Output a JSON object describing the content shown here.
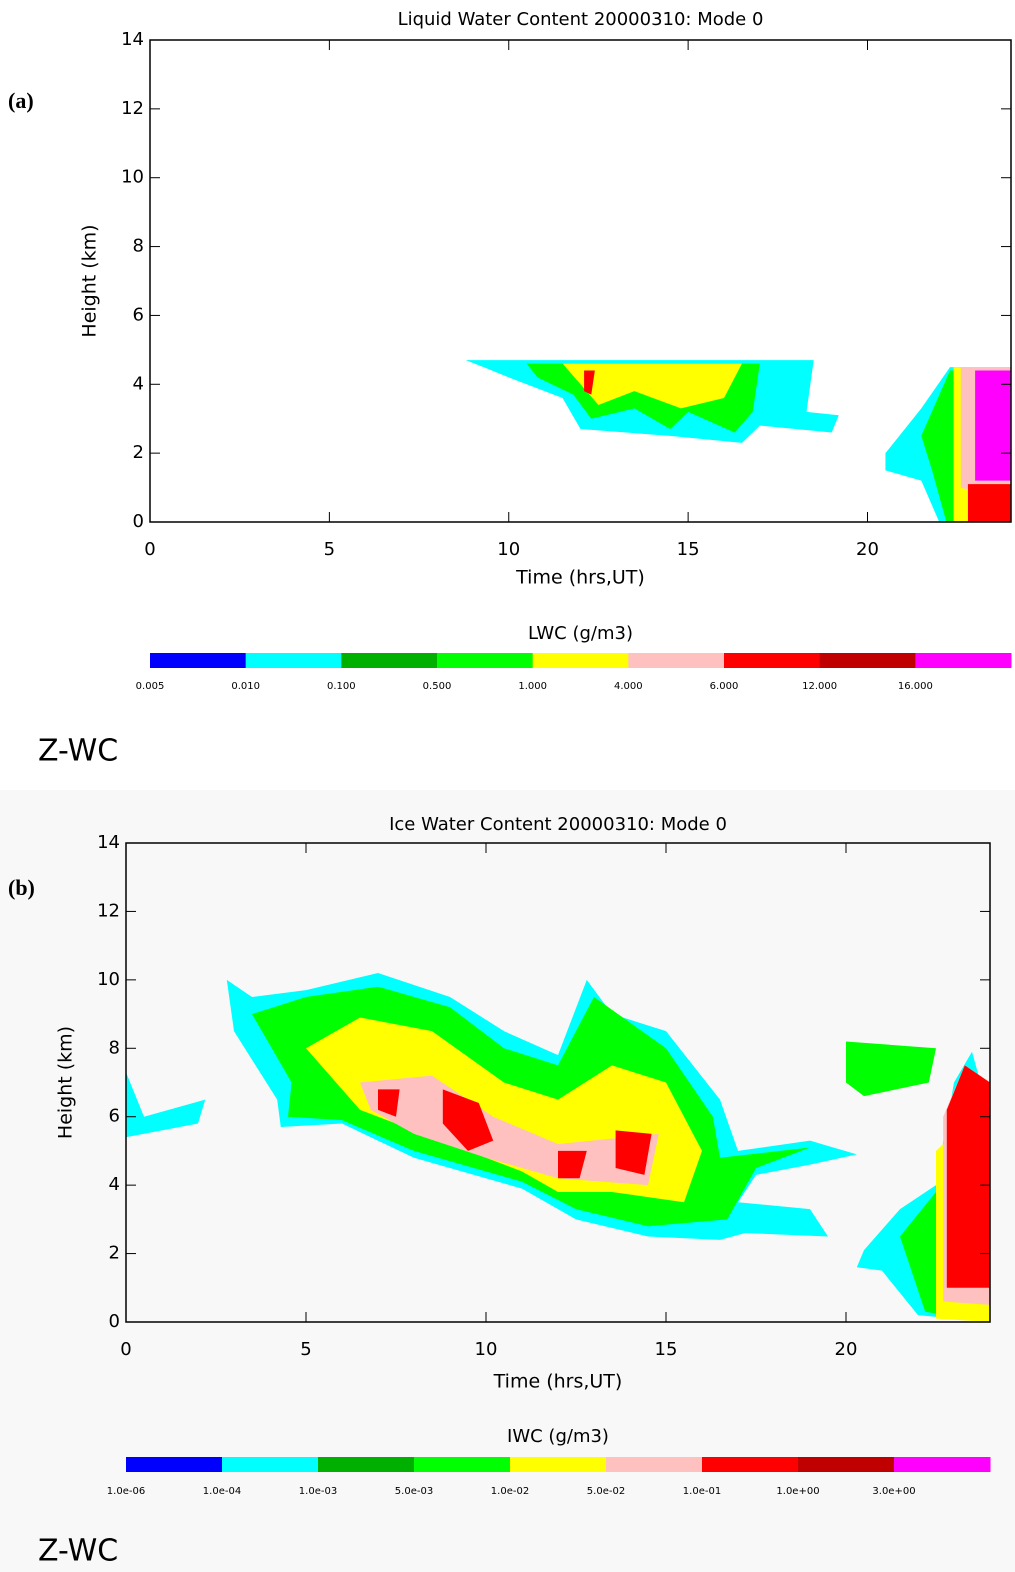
{
  "chart_data": [
    {
      "type": "heatmap",
      "panel_label": "(a)",
      "title": "Liquid Water Content 20000310: Mode 0",
      "xlabel": "Time (hrs,UT)",
      "ylabel": "Height (km)",
      "footer": "Z-WC",
      "xlim": [
        0,
        24
      ],
      "ylim": [
        0,
        14
      ],
      "xticks": [
        0,
        5,
        10,
        15,
        20
      ],
      "yticks": [
        0,
        2,
        4,
        6,
        8,
        10,
        12,
        14
      ],
      "colorbar": {
        "label": "LWC (g/m3)",
        "colors": [
          "#0000ff",
          "#00ffff",
          "#00b000",
          "#00ff00",
          "#ffff00",
          "#ffc0c0",
          "#ff0000",
          "#c00000",
          "#ff00ff"
        ],
        "ticks": [
          0.005,
          {
            "value": 0.01,
            "label": "0.010"
          },
          {
            "value": 0.1,
            "label": "0.100"
          },
          {
            "value": 0.5,
            "label": "0.500"
          },
          {
            "value": 1,
            "label": "1.000"
          },
          {
            "value": 4,
            "label": "4.000"
          },
          {
            "value": 6,
            "label": "6.000"
          },
          {
            "value": 12,
            "label": "12.000"
          },
          {
            "value": 16,
            "label": "16.000"
          }
        ]
      },
      "contours": [
        {
          "level": 1,
          "points": [
            [
              8.8,
              4.7
            ],
            [
              18.5,
              4.7
            ],
            [
              18.3,
              3.2
            ],
            [
              19.2,
              3.1
            ],
            [
              19,
              2.6
            ],
            [
              17,
              2.8
            ],
            [
              16.5,
              2.3
            ],
            [
              14.5,
              2.5
            ],
            [
              12,
              2.7
            ],
            [
              11.5,
              3.6
            ],
            [
              10,
              4.2
            ],
            [
              9.3,
              4.5
            ]
          ]
        },
        {
          "level": 3,
          "points": [
            [
              10.5,
              4.6
            ],
            [
              17,
              4.6
            ],
            [
              16.8,
              3.2
            ],
            [
              16.3,
              2.6
            ],
            [
              15,
              3.2
            ],
            [
              14.5,
              2.7
            ],
            [
              13.5,
              3.3
            ],
            [
              12.3,
              3.0
            ],
            [
              11.8,
              3.7
            ],
            [
              10.8,
              4.2
            ]
          ]
        },
        {
          "level": 4,
          "points": [
            [
              11.5,
              4.6
            ],
            [
              16.5,
              4.6
            ],
            [
              16,
              3.6
            ],
            [
              14.8,
              3.3
            ],
            [
              13.5,
              3.8
            ],
            [
              12.5,
              3.4
            ],
            [
              12,
              4.0
            ]
          ]
        },
        {
          "level": 6,
          "points": [
            [
              12.1,
              4.4
            ],
            [
              12.4,
              4.4
            ],
            [
              12.3,
              3.7
            ],
            [
              12.1,
              3.8
            ]
          ]
        },
        {
          "level": 1,
          "points": [
            [
              20.5,
              2.0
            ],
            [
              21.5,
              3.3
            ],
            [
              22.3,
              4.5
            ],
            [
              24,
              4.5
            ],
            [
              24,
              0
            ],
            [
              22,
              0
            ],
            [
              21.5,
              1.2
            ],
            [
              20.5,
              1.5
            ]
          ]
        },
        {
          "level": 3,
          "points": [
            [
              21.5,
              2.5
            ],
            [
              22.3,
              4.4
            ],
            [
              24,
              4.4
            ],
            [
              24,
              0
            ],
            [
              22.2,
              0
            ],
            [
              21.8,
              1.5
            ]
          ]
        },
        {
          "level": 4,
          "points": [
            [
              22.4,
              4.5
            ],
            [
              24,
              4.5
            ],
            [
              24,
              0
            ],
            [
              22.4,
              0
            ]
          ]
        },
        {
          "level": 5,
          "points": [
            [
              22.6,
              4.5
            ],
            [
              24,
              4.5
            ],
            [
              24,
              0.6
            ],
            [
              22.6,
              1
            ]
          ]
        },
        {
          "level": 8,
          "points": [
            [
              23,
              4.4
            ],
            [
              24,
              4.4
            ],
            [
              24,
              1.2
            ],
            [
              23,
              1.2
            ]
          ]
        },
        {
          "level": 6,
          "points": [
            [
              22.8,
              1.1
            ],
            [
              24,
              1.1
            ],
            [
              24,
              0
            ],
            [
              22.8,
              0
            ]
          ]
        }
      ]
    },
    {
      "type": "heatmap",
      "panel_label": "(b)",
      "title": "Ice Water Content 20000310: Mode 0",
      "xlabel": "Time (hrs,UT)",
      "ylabel": "Height (km)",
      "footer": "Z-WC",
      "xlim": [
        0,
        24
      ],
      "ylim": [
        0,
        14
      ],
      "xticks": [
        0,
        5,
        10,
        15,
        20
      ],
      "yticks": [
        0,
        2,
        4,
        6,
        8,
        10,
        12,
        14
      ],
      "colorbar": {
        "label": "IWC (g/m3)",
        "colors": [
          "#0000ff",
          "#00ffff",
          "#00b000",
          "#00ff00",
          "#ffff00",
          "#ffc0c0",
          "#ff0000",
          "#c00000",
          "#ff00ff"
        ],
        "ticks": [
          {
            "value": 1e-06,
            "label": "1.0e-06"
          },
          {
            "value": 0.0001,
            "label": "1.0e-04"
          },
          {
            "value": 0.001,
            "label": "1.0e-03"
          },
          {
            "value": 0.005,
            "label": "5.0e-03"
          },
          {
            "value": 0.01,
            "label": "1.0e-02"
          },
          {
            "value": 0.05,
            "label": "5.0e-02"
          },
          {
            "value": 0.1,
            "label": "1.0e-01"
          },
          {
            "value": 1,
            "label": "1.0e+00"
          },
          {
            "value": 3,
            "label": "3.0e+00"
          }
        ]
      },
      "contours": [
        {
          "level": 1,
          "points": [
            [
              0,
              7.3
            ],
            [
              0.5,
              6
            ],
            [
              2.2,
              6.5
            ],
            [
              2,
              5.8
            ],
            [
              0,
              5.4
            ]
          ]
        },
        {
          "level": 1,
          "points": [
            [
              2.8,
              10
            ],
            [
              3.5,
              9.5
            ],
            [
              5,
              9.7
            ],
            [
              7,
              10.2
            ],
            [
              9,
              9.5
            ],
            [
              10.5,
              8.5
            ],
            [
              12,
              7.8
            ],
            [
              12.8,
              10
            ],
            [
              13.5,
              9
            ],
            [
              15,
              8.5
            ],
            [
              16.5,
              6.5
            ],
            [
              17,
              5
            ],
            [
              19,
              5.3
            ],
            [
              20.3,
              4.9
            ],
            [
              19,
              4.6
            ],
            [
              17.5,
              4.3
            ],
            [
              17,
              3.5
            ],
            [
              19,
              3.3
            ],
            [
              19.5,
              2.5
            ],
            [
              17.2,
              2.6
            ],
            [
              16.5,
              2.4
            ],
            [
              14.5,
              2.5
            ],
            [
              12.5,
              3
            ],
            [
              11,
              3.9
            ],
            [
              8,
              4.8
            ],
            [
              6,
              5.8
            ],
            [
              4.3,
              5.7
            ],
            [
              4.2,
              6.5
            ],
            [
              3,
              8.5
            ]
          ]
        },
        {
          "level": 3,
          "points": [
            [
              3.5,
              9
            ],
            [
              5,
              9.5
            ],
            [
              7,
              9.8
            ],
            [
              9,
              9.2
            ],
            [
              10.5,
              8
            ],
            [
              12,
              7.5
            ],
            [
              13,
              9.5
            ],
            [
              15,
              8
            ],
            [
              16.3,
              6
            ],
            [
              16.5,
              4.8
            ],
            [
              19,
              5.1
            ],
            [
              17.5,
              4.5
            ],
            [
              16.7,
              3
            ],
            [
              14.5,
              2.8
            ],
            [
              12.5,
              3.3
            ],
            [
              11,
              4.1
            ],
            [
              8,
              5
            ],
            [
              6,
              5.9
            ],
            [
              4.5,
              6
            ],
            [
              4.6,
              7
            ]
          ]
        },
        {
          "level": 4,
          "points": [
            [
              5,
              8
            ],
            [
              6.5,
              8.9
            ],
            [
              8.5,
              8.5
            ],
            [
              10.5,
              7
            ],
            [
              12,
              6.5
            ],
            [
              13.5,
              7.5
            ],
            [
              15,
              7
            ],
            [
              16,
              5
            ],
            [
              15.5,
              3.5
            ],
            [
              13.5,
              3.8
            ],
            [
              12,
              3.8
            ],
            [
              11,
              4.4
            ],
            [
              8.5,
              5.4
            ],
            [
              6.5,
              6.2
            ]
          ]
        },
        {
          "level": 5,
          "points": [
            [
              6.5,
              7
            ],
            [
              8.5,
              7.2
            ],
            [
              10.2,
              6
            ],
            [
              12,
              5.2
            ],
            [
              14.8,
              5.5
            ],
            [
              14.5,
              4
            ],
            [
              12,
              4.2
            ],
            [
              10,
              4.8
            ],
            [
              8,
              5.5
            ],
            [
              6.8,
              6.2
            ]
          ]
        },
        {
          "level": 6,
          "points": [
            [
              8.8,
              6.8
            ],
            [
              9.8,
              6.4
            ],
            [
              10.2,
              5.3
            ],
            [
              9.5,
              5
            ],
            [
              8.8,
              5.8
            ]
          ]
        },
        {
          "level": 6,
          "points": [
            [
              7,
              6.8
            ],
            [
              7.6,
              6.8
            ],
            [
              7.5,
              6
            ],
            [
              7,
              6.2
            ]
          ]
        },
        {
          "level": 6,
          "points": [
            [
              12,
              5
            ],
            [
              12.8,
              5
            ],
            [
              12.6,
              4.2
            ],
            [
              12,
              4.2
            ]
          ]
        },
        {
          "level": 6,
          "points": [
            [
              13.6,
              5.6
            ],
            [
              14.6,
              5.5
            ],
            [
              14.4,
              4.3
            ],
            [
              13.6,
              4.5
            ]
          ]
        },
        {
          "level": 3,
          "points": [
            [
              20,
              8.2
            ],
            [
              22.5,
              8.0
            ],
            [
              22.3,
              7
            ],
            [
              20.5,
              6.6
            ],
            [
              20,
              7
            ]
          ]
        },
        {
          "level": 1,
          "points": [
            [
              20.5,
              2.1
            ],
            [
              21.5,
              3.3
            ],
            [
              22.5,
              4
            ],
            [
              23,
              7
            ],
            [
              23.5,
              7.9
            ],
            [
              24,
              6
            ],
            [
              24,
              0
            ],
            [
              22,
              0.2
            ],
            [
              21,
              1.5
            ],
            [
              20.3,
              1.6
            ]
          ]
        },
        {
          "level": 3,
          "points": [
            [
              21.5,
              2.5
            ],
            [
              22.5,
              3.8
            ],
            [
              22.8,
              6
            ],
            [
              24,
              6
            ],
            [
              24,
              0
            ],
            [
              22.2,
              0.3
            ]
          ]
        },
        {
          "level": 4,
          "points": [
            [
              22.5,
              5
            ],
            [
              24,
              6.5
            ],
            [
              24,
              0
            ],
            [
              22.5,
              0.1
            ]
          ]
        },
        {
          "level": 5,
          "points": [
            [
              22.7,
              6
            ],
            [
              23.3,
              7.5
            ],
            [
              24,
              7
            ],
            [
              24,
              0.5
            ],
            [
              22.7,
              0.6
            ]
          ]
        },
        {
          "level": 6,
          "points": [
            [
              22.8,
              6.2
            ],
            [
              23.3,
              7.5
            ],
            [
              24,
              7
            ],
            [
              24,
              1
            ],
            [
              22.8,
              1
            ]
          ]
        }
      ]
    }
  ]
}
